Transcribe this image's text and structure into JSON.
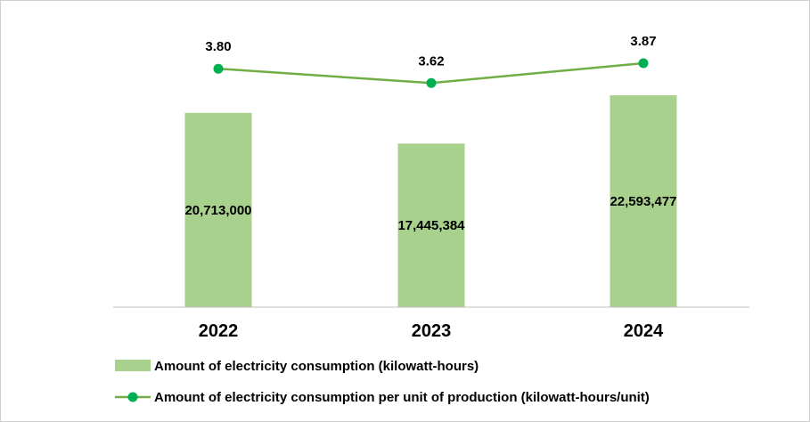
{
  "chart_data": {
    "type": "bar",
    "categories": [
      "2022",
      "2023",
      "2024"
    ],
    "series": [
      {
        "name": "Amount of electricity consumption (kilowatt-hours)",
        "kind": "bar",
        "values": [
          20713000,
          17445384,
          22593477
        ],
        "labels": [
          "20,713,000",
          "17,445,384",
          "22,593,477"
        ],
        "color": "#a9d18e"
      },
      {
        "name": "Amount of electricity consumption per unit of production (kilowatt-hours/unit)",
        "kind": "line",
        "values": [
          3.8,
          3.62,
          3.87
        ],
        "labels": [
          "3.80",
          "3.62",
          "3.87"
        ],
        "color": "#00b050",
        "line_color": "#70ad47"
      }
    ],
    "bar_axis_range": [
      0,
      30000000
    ],
    "line_axis_range": [
      0.8,
      4.34
    ],
    "grid": false,
    "legend_position": "bottom-left",
    "axis_color": "#bfbfbf"
  }
}
